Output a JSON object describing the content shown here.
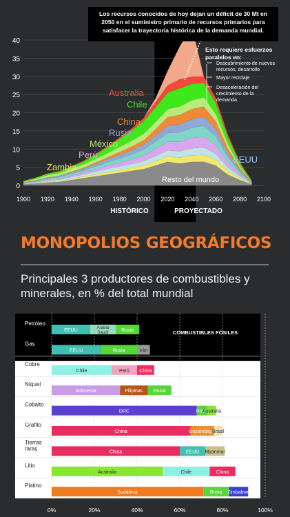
{
  "section_title": "MONOPOLIOS GEOGRÁFICOS",
  "section_subtitle": "Principales 3 productores de combustibles y minerales, en % del total mundial",
  "chart_data": [
    {
      "type": "area",
      "annotation_main": [
        "Los recursos conocidos de hoy dejan un déficit de 30 Mt en",
        "2050 en el suministro primario de recursos primarios para",
        "satisfacer la trayectoria histórica de la demanda mundial."
      ],
      "annotation_efforts_title": [
        "Esto requiere esfuerzos",
        "paralelos en:"
      ],
      "annotation_efforts_items": [
        [
          "Descubrimiento de nuevos",
          "recursos, desarrollo"
        ],
        [
          "Mayor reciclaje"
        ],
        [
          "Desaceleración del",
          "crecimiento de la",
          "demanda."
        ]
      ],
      "period_labels": [
        "HISTÓRICO",
        "PROYECTADO"
      ],
      "ylim": [
        0,
        40
      ],
      "y_ticks": [
        "0",
        "5",
        "10",
        "15",
        "20",
        "25",
        "30",
        "35",
        "40"
      ],
      "xlim": [
        1900,
        2100
      ],
      "x_ticks": [
        "1900",
        "1920",
        "1940",
        "1960",
        "1980",
        "2000",
        "2020",
        "2040",
        "2060",
        "2080",
        "2100"
      ],
      "projection_start": 2009,
      "x": [
        1900,
        1910,
        1920,
        1930,
        1940,
        1950,
        1960,
        1970,
        1980,
        1990,
        2000,
        2010,
        2020,
        2030,
        2040,
        2050,
        2060,
        2070,
        2080,
        2090
      ],
      "series": [
        {
          "name": "Resto del mundo",
          "color": "#8a8a8a",
          "values": [
            0.3,
            0.5,
            0.8,
            1.0,
            1.5,
            2.0,
            2.5,
            3.0,
            3.5,
            4.0,
            4.5,
            5.5,
            6.5,
            6.0,
            6.5,
            6.5,
            5.5,
            3.0,
            1.5,
            0.3
          ]
        },
        {
          "name": "",
          "color": "#f3e86a",
          "values": [
            0.1,
            0.1,
            0.2,
            0.2,
            0.3,
            0.4,
            0.5,
            0.6,
            0.7,
            0.8,
            1.0,
            1.2,
            1.5,
            1.6,
            1.8,
            1.9,
            1.6,
            1.0,
            0.5,
            0.1
          ]
        },
        {
          "name": "Zambia",
          "color": "#bfe6e0",
          "values": [
            0.1,
            0.2,
            0.3,
            0.4,
            0.5,
            0.6,
            0.8,
            1.0,
            1.0,
            1.1,
            1.2,
            1.4,
            1.6,
            1.8,
            1.9,
            2.0,
            1.6,
            1.0,
            0.5,
            0.1
          ]
        },
        {
          "name": "Perú",
          "color": "#d9a7ee",
          "values": [
            0.1,
            0.2,
            0.3,
            0.3,
            0.4,
            0.5,
            0.6,
            0.8,
            1.0,
            1.2,
            1.5,
            2.0,
            2.4,
            2.6,
            2.8,
            3.0,
            2.4,
            1.4,
            0.6,
            0.1
          ]
        },
        {
          "name": "México",
          "color": "#7fd6c8",
          "values": [
            0.1,
            0.2,
            0.3,
            0.4,
            0.5,
            0.6,
            0.8,
            1.0,
            1.2,
            1.4,
            1.6,
            2.0,
            2.4,
            2.6,
            2.8,
            3.0,
            2.4,
            1.4,
            0.6,
            0.1
          ]
        },
        {
          "name": "Rusia",
          "color": "#8fa8d6",
          "values": [
            0.05,
            0.1,
            0.2,
            0.3,
            0.4,
            0.5,
            0.7,
            0.8,
            1.0,
            1.2,
            1.4,
            1.6,
            2.0,
            2.2,
            2.4,
            2.5,
            2.0,
            1.2,
            0.5,
            0.1
          ]
        },
        {
          "name": "China",
          "color": "#f08a3a",
          "values": [
            0.05,
            0.1,
            0.1,
            0.1,
            0.2,
            0.3,
            0.4,
            0.5,
            0.8,
            1.0,
            1.2,
            1.8,
            2.4,
            2.6,
            2.8,
            2.8,
            2.2,
            1.3,
            0.6,
            0.1
          ]
        },
        {
          "name": "EEUU",
          "color": "#b8ec7a",
          "values": [
            0.2,
            0.4,
            0.6,
            0.7,
            0.8,
            0.9,
            1.0,
            1.2,
            1.4,
            1.6,
            1.8,
            2.0,
            2.2,
            2.3,
            2.4,
            2.5,
            2.0,
            1.2,
            0.5,
            0.1
          ]
        },
        {
          "name": "Chile",
          "color": "#3ee81b",
          "values": [
            0.2,
            0.3,
            0.4,
            0.5,
            0.6,
            0.8,
            1.2,
            1.6,
            2.2,
            2.8,
            3.5,
            4.0,
            4.5,
            5.0,
            4.5,
            4.0,
            3.0,
            1.8,
            0.8,
            0.2
          ]
        },
        {
          "name": "Australia",
          "color": "#f24a3a",
          "values": [
            0.05,
            0.05,
            0.1,
            0.1,
            0.1,
            0.2,
            0.2,
            0.3,
            0.4,
            0.6,
            0.8,
            1.5,
            2.0,
            2.5,
            2.0,
            1.8,
            1.3,
            0.8,
            0.4,
            0.1
          ]
        },
        {
          "name": "",
          "color": "#f2a88a",
          "values": [
            0,
            0,
            0,
            0,
            0,
            0,
            0,
            0,
            0,
            0,
            0,
            1.0,
            4.0,
            9.0,
            14.0,
            0,
            0,
            0,
            0,
            0
          ]
        }
      ]
    },
    {
      "type": "bar",
      "orientation": "horizontal",
      "stacked": true,
      "legend_label": "COMBUSTIBLES FÓSILES",
      "xlim": [
        0,
        100
      ],
      "x_ticks": [
        "0%",
        "20%",
        "40%",
        "60%",
        "80%",
        "100%"
      ],
      "categories": [
        "Petróleo",
        "Gas",
        "Cobre",
        "Níquel",
        "Cobalto",
        "Grafito",
        "Tierras raras",
        "Litio",
        "Platino"
      ],
      "fossil_count": 2,
      "rows": [
        {
          "segments": [
            {
              "label": "EEUU",
              "value": 18,
              "color": "#40bfb2"
            },
            {
              "label": "Arabia Saudí",
              "value": 12,
              "color": "#9ad9bf"
            },
            {
              "label": "Rusia",
              "value": 11,
              "color": "#57d63a"
            }
          ]
        },
        {
          "segments": [
            {
              "label": "EEUU",
              "value": 23,
              "color": "#40bfb2"
            },
            {
              "label": "Rusia",
              "value": 17,
              "color": "#57d63a"
            },
            {
              "label": "Irán",
              "value": 6,
              "color": "#9a9a9a"
            }
          ]
        },
        {
          "segments": [
            {
              "label": "Chile",
              "value": 28,
              "color": "#8ff0e4"
            },
            {
              "label": "Perú",
              "value": 12,
              "color": "#f0a3bf"
            },
            {
              "label": "China",
              "value": 8,
              "color": "#f02e62"
            }
          ]
        },
        {
          "segments": [
            {
              "label": "Indonesia",
              "value": 32,
              "color": "#c89ae8"
            },
            {
              "label": "Filipinas",
              "value": 13,
              "color": "#b85618"
            },
            {
              "label": "Rusia",
              "value": 11,
              "color": "#57d63a"
            }
          ]
        },
        {
          "segments": [
            {
              "label": "DRC",
              "value": 68,
              "color": "#5b3fd0"
            },
            {
              "label": "Rusia",
              "value": 5,
              "color": "#57d63a"
            },
            {
              "label": "Australia",
              "value": 4,
              "color": "#8ae634"
            }
          ]
        },
        {
          "segments": [
            {
              "label": "China",
              "value": 65,
              "color": "#e82d60"
            },
            {
              "label": "Mozambique",
              "value": 11,
              "color": "#f08e2a"
            },
            {
              "label": "Brasil",
              "value": 4,
              "color": "#efe3b4"
            }
          ]
        },
        {
          "segments": [
            {
              "label": "China",
              "value": 60,
              "color": "#e82d60"
            },
            {
              "label": "EEUU",
              "value": 12,
              "color": "#40bfb2"
            },
            {
              "label": "Myanmar",
              "value": 9,
              "color": "#c9c28a"
            }
          ]
        },
        {
          "segments": [
            {
              "label": "Australia",
              "value": 52,
              "color": "#8ae634"
            },
            {
              "label": "Chile",
              "value": 22,
              "color": "#8ff0e4"
            },
            {
              "label": "China",
              "value": 12,
              "color": "#e82d60"
            }
          ]
        },
        {
          "segments": [
            {
              "label": "Sudáfrica",
              "value": 71,
              "color": "#f07a20"
            },
            {
              "label": "Rusia",
              "value": 12,
              "color": "#57d63a"
            },
            {
              "label": "Zimbabwe",
              "value": 9,
              "color": "#3a3fd6"
            }
          ]
        }
      ]
    }
  ]
}
